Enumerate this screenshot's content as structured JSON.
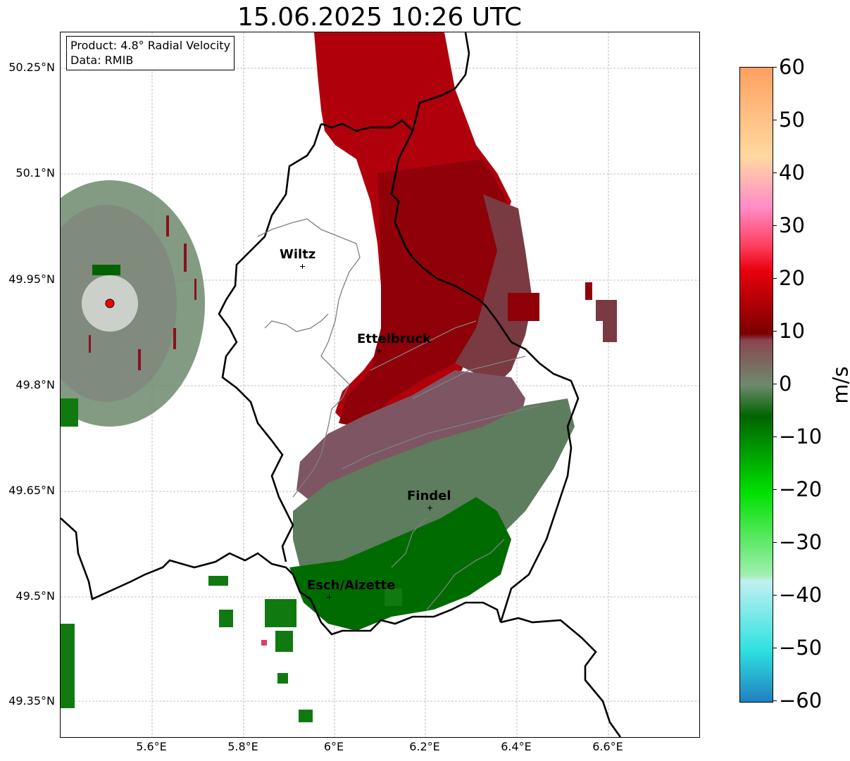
{
  "title": "15.06.2025 10:26 UTC",
  "info": {
    "product": "Product: 4.8° Radial Velocity",
    "data": "Data: RMIB"
  },
  "lat_ticks": [
    "50.25°N",
    "50.1°N",
    "49.95°N",
    "49.8°N",
    "49.65°N",
    "49.5°N",
    "49.35°N"
  ],
  "lon_ticks": [
    "5.6°E",
    "5.8°E",
    "6°E",
    "6.2°E",
    "6.4°E",
    "6.6°E"
  ],
  "cities": [
    {
      "name": "Wiltz"
    },
    {
      "name": "Ettelbruck"
    },
    {
      "name": "Findel"
    },
    {
      "name": "Esch/Alzette"
    }
  ],
  "colorbar": {
    "unit": "m/s",
    "min": -60,
    "max": 60,
    "ticks": [
      "60",
      "50",
      "40",
      "30",
      "20",
      "10",
      "0",
      "−10",
      "−20",
      "−30",
      "−40",
      "−50",
      "−60"
    ],
    "colors": {
      "positive_high": "#ffa060",
      "pink": "#ff8cc8",
      "red": "#e8000c",
      "dark_red": "#7a0000",
      "muted_red": "#8a4550",
      "grey_green": "#6e8a6e",
      "dark_green": "#006400",
      "bright_green": "#00e000",
      "cyan": "#2ee0e0",
      "blue": "#2080c0"
    }
  },
  "radar_site_color": "#ff0000",
  "map_colors": {
    "border": "#000000",
    "canton": "#808080",
    "grid": "#b0b0b0"
  }
}
